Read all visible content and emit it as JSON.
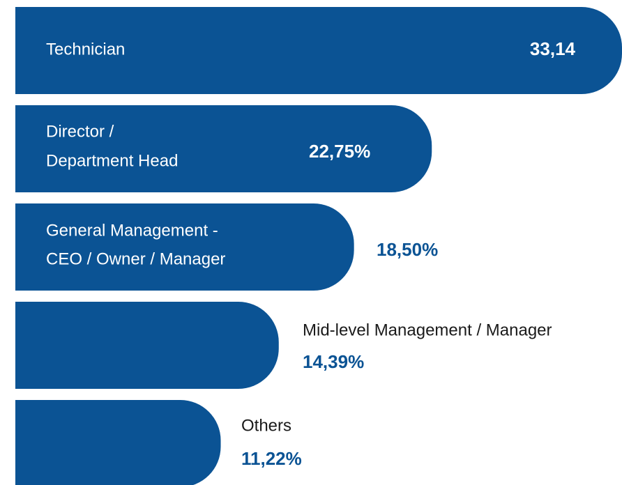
{
  "chart_data": {
    "type": "bar",
    "orientation": "horizontal",
    "color": "#0b5394",
    "categories": [
      [
        "Technician"
      ],
      [
        "Director /",
        "Department Head"
      ],
      [
        "General Management -",
        "CEO / Owner / Manager"
      ],
      [
        "Mid-level Management / Manager"
      ],
      [
        "Others"
      ]
    ],
    "values": [
      33.14,
      22.75,
      18.5,
      14.39,
      11.22
    ],
    "value_labels": [
      "33,14",
      "22,75%",
      "18,50%",
      "14,39%",
      "11,22%"
    ]
  }
}
